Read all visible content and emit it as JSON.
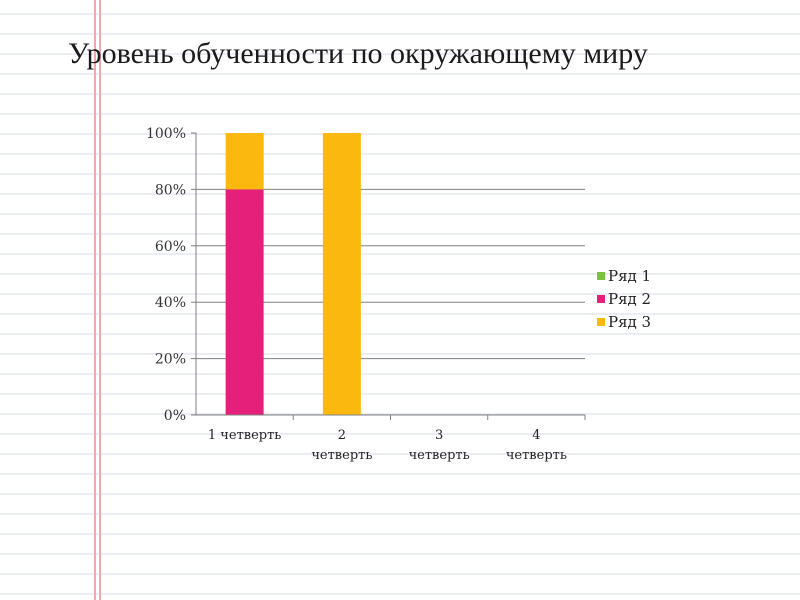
{
  "slide": {
    "title": "Уровень обученности по окружающему миру"
  },
  "chart_data": {
    "type": "bar",
    "stacked": true,
    "categories": [
      [
        "1 четверть"
      ],
      [
        "2",
        "четверть"
      ],
      [
        "3",
        "четверть"
      ],
      [
        "4",
        "четверть"
      ]
    ],
    "series": [
      {
        "name": "Ряд 1",
        "color": "#7cc242",
        "values": [
          0,
          0,
          0,
          0
        ]
      },
      {
        "name": "Ряд 2",
        "color": "#e5207a",
        "values": [
          80,
          0,
          0,
          0
        ]
      },
      {
        "name": "Ряд 3",
        "color": "#fbb80f",
        "values": [
          20,
          100,
          0,
          0
        ]
      }
    ],
    "yticks": [
      "0%",
      "20%",
      "40%",
      "60%",
      "80%",
      "100%"
    ],
    "ylim": [
      0,
      100
    ],
    "grid": true,
    "legend": "right"
  }
}
